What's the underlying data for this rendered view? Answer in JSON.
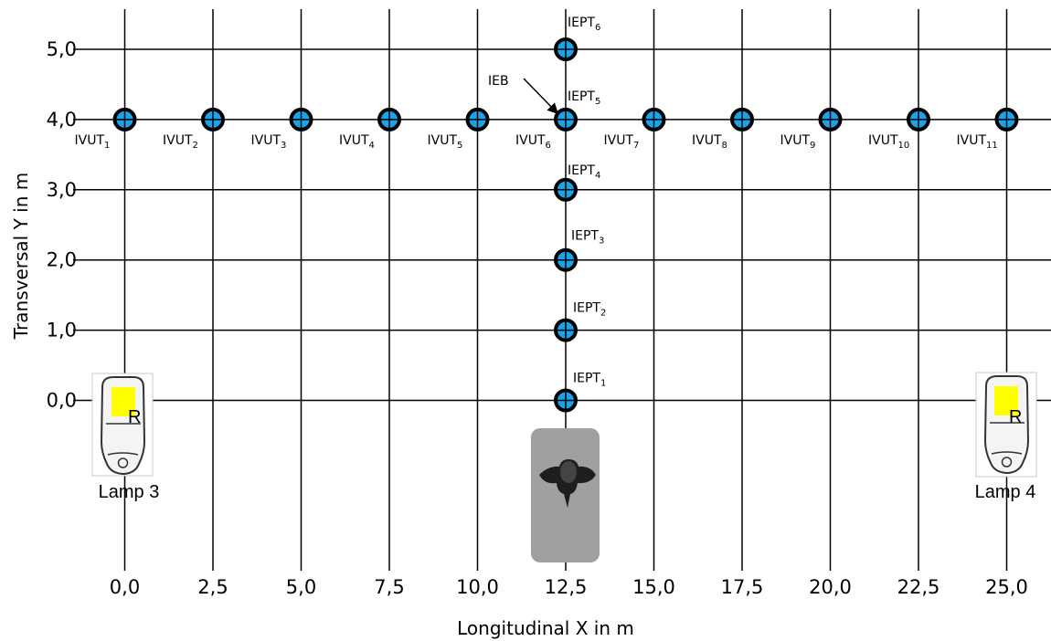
{
  "axes": {
    "x_label": "Longitudinal X in m",
    "y_label": "Transversal Y in m",
    "x_ticks": [
      "0,0",
      "2,5",
      "5,0",
      "7,5",
      "10,0",
      "12,5",
      "15,0",
      "17,5",
      "20,0",
      "22,5",
      "25,0"
    ],
    "y_ticks": [
      "0,0",
      "1,0",
      "2,0",
      "3,0",
      "4,0",
      "5,0"
    ]
  },
  "point_color": "#1aa3e8",
  "vut_points": [
    {
      "x": 0.0,
      "y": 4.0,
      "name": "IVUT",
      "sub": "1"
    },
    {
      "x": 2.5,
      "y": 4.0,
      "name": "IVUT",
      "sub": "2"
    },
    {
      "x": 5.0,
      "y": 4.0,
      "name": "IVUT",
      "sub": "3"
    },
    {
      "x": 7.5,
      "y": 4.0,
      "name": "IVUT",
      "sub": "4"
    },
    {
      "x": 10.0,
      "y": 4.0,
      "name": "IVUT",
      "sub": "5"
    },
    {
      "x": 12.5,
      "y": 4.0,
      "name": "IVUT",
      "sub": "6"
    },
    {
      "x": 15.0,
      "y": 4.0,
      "name": "IVUT",
      "sub": "7"
    },
    {
      "x": 17.5,
      "y": 4.0,
      "name": "IVUT",
      "sub": "8"
    },
    {
      "x": 20.0,
      "y": 4.0,
      "name": "IVUT",
      "sub": "9"
    },
    {
      "x": 22.5,
      "y": 4.0,
      "name": "IVUT",
      "sub": "10"
    },
    {
      "x": 25.0,
      "y": 4.0,
      "name": "IVUT",
      "sub": "11"
    }
  ],
  "ept_points": [
    {
      "x": 12.5,
      "y": 0.0,
      "name": "IEPT",
      "sub": "1"
    },
    {
      "x": 12.5,
      "y": 1.0,
      "name": "IEPT",
      "sub": "2"
    },
    {
      "x": 12.5,
      "y": 2.0,
      "name": "IEPT",
      "sub": "3"
    },
    {
      "x": 12.5,
      "y": 3.0,
      "name": "IEPT",
      "sub": "4"
    },
    {
      "x": 12.5,
      "y": 4.0,
      "name": "IEPT",
      "sub": "5"
    },
    {
      "x": 12.5,
      "y": 5.0,
      "name": "IEPT",
      "sub": "6"
    }
  ],
  "eb_label": "IEB",
  "lamps": [
    {
      "name": "Lamp 3",
      "marker": "R",
      "x": 0.0
    },
    {
      "name": "Lamp 4",
      "marker": "R",
      "x": 25.0
    }
  ],
  "lamp_highlight_color": "#ffff00"
}
